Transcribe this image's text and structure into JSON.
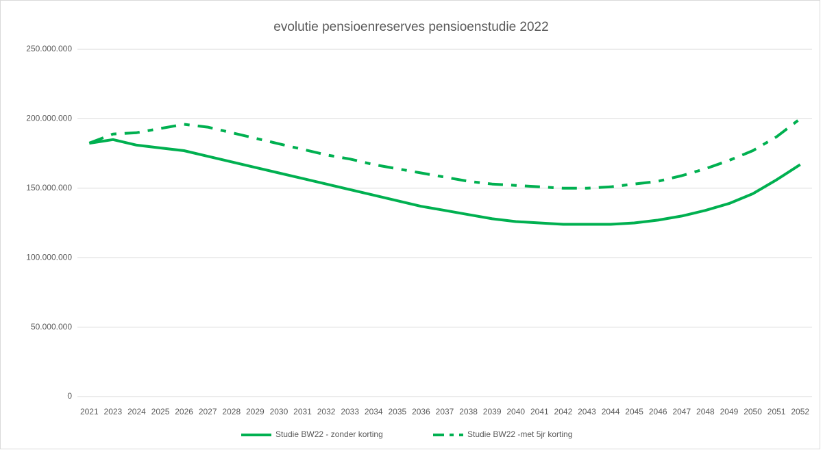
{
  "chart_data": {
    "type": "line",
    "title": "evolutie pensioenreserves pensioenstudie 2022",
    "categories": [
      "2021",
      "2023",
      "2024",
      "2025",
      "2026",
      "2027",
      "2028",
      "2029",
      "2030",
      "2031",
      "2032",
      "2033",
      "2034",
      "2035",
      "2036",
      "2037",
      "2038",
      "2039",
      "2040",
      "2041",
      "2042",
      "2043",
      "2044",
      "2045",
      "2046",
      "2047",
      "2048",
      "2049",
      "2050",
      "2051",
      "2052"
    ],
    "series": [
      {
        "name": "Studie BW22 - zonder korting",
        "color": "#00b050",
        "dashed": false,
        "values": [
          182400000,
          185000000,
          181000000,
          179000000,
          177000000,
          173000000,
          169000000,
          165000000,
          161000000,
          157000000,
          153000000,
          149000000,
          145000000,
          141000000,
          137000000,
          134000000,
          131000000,
          128000000,
          126000000,
          125000000,
          124000000,
          124000000,
          124000000,
          125000000,
          127000000,
          130000000,
          134000000,
          139000000,
          146000000,
          156000000,
          167000000
        ]
      },
      {
        "name": "Studie BW22 -met 5jr korting",
        "color": "#00b050",
        "dashed": true,
        "values": [
          182500000,
          189000000,
          190000000,
          193000000,
          196000000,
          194000000,
          190000000,
          186000000,
          182000000,
          178000000,
          174000000,
          171000000,
          167000000,
          164000000,
          161000000,
          158000000,
          155000000,
          153000000,
          152000000,
          151000000,
          150000000,
          150000000,
          151000000,
          153000000,
          155000000,
          159000000,
          164000000,
          170000000,
          177000000,
          187000000,
          200000000
        ]
      }
    ],
    "ylim": [
      0,
      250000000
    ],
    "yticks": [
      0,
      {
        "value": 50000000,
        "label": "50.000.000"
      },
      {
        "value": 100000000,
        "label": "100.000.000"
      },
      {
        "value": 150000000,
        "label": "150.000.000"
      },
      {
        "value": 200000000,
        "label": "200.000.000"
      },
      {
        "value": 250000000,
        "label": "250.000.000"
      }
    ],
    "grid": true,
    "legend": "bottom"
  }
}
